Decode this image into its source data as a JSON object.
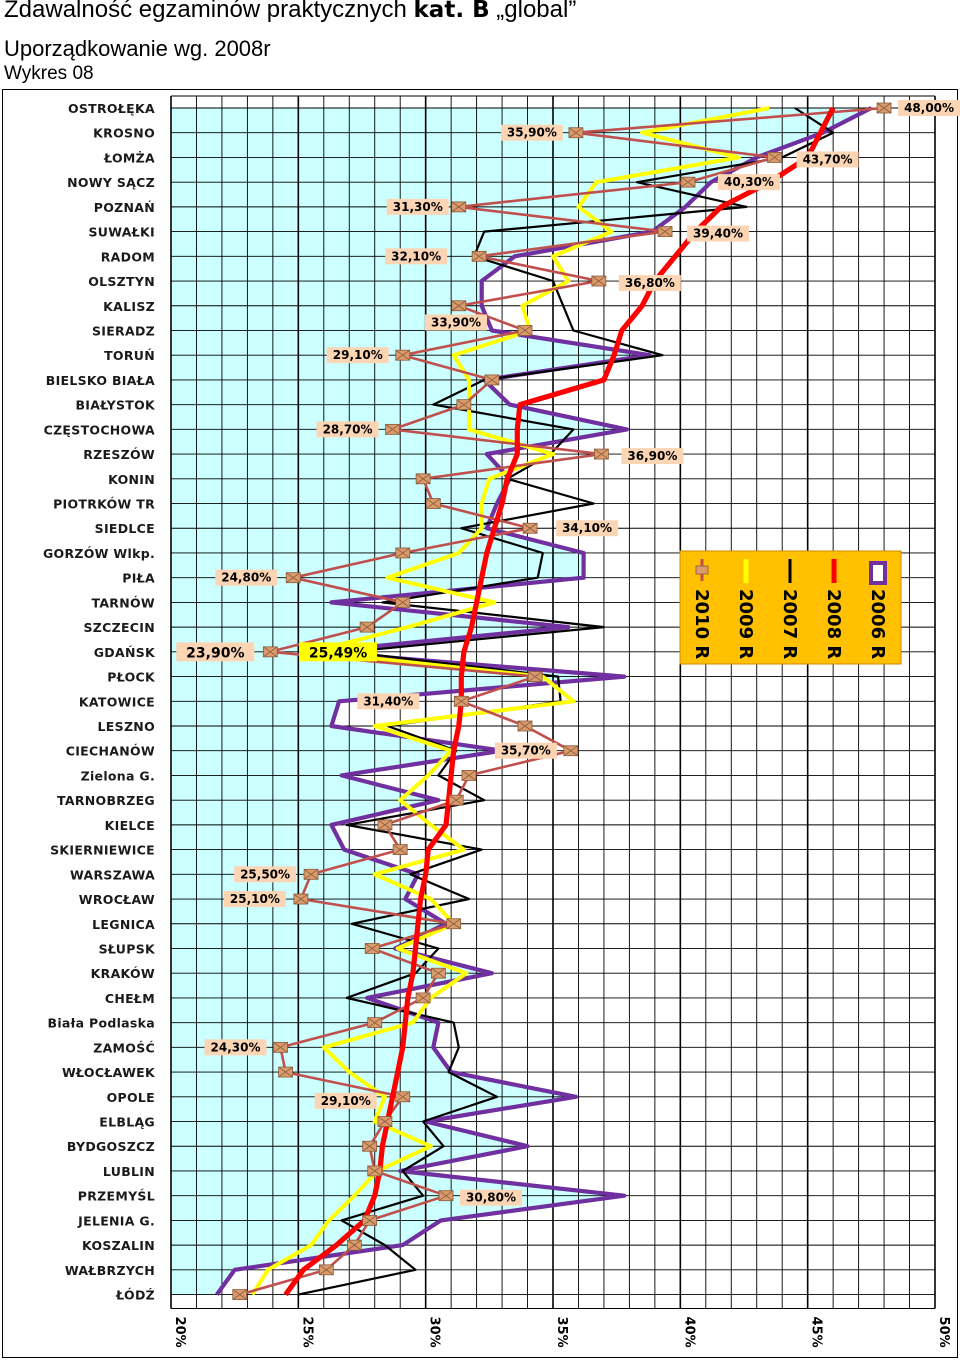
{
  "header": {
    "title_prefix": "Zdawalność egzaminów praktycznych ",
    "title_bold": "kat. B",
    "title_suffix": " „global”",
    "subtitle": "Uporządkowanie wg. 2008r",
    "figure_label": "Wykres 08"
  },
  "chart_data": {
    "type": "line",
    "orientation": "horizontal-categories",
    "xlim": [
      20,
      50
    ],
    "x_ticks": [
      "20%",
      "25%",
      "30%",
      "35%",
      "40%",
      "45%",
      "50%"
    ],
    "categories": [
      "OSTROŁĘKA",
      "KROSNO",
      "ŁOMŻA",
      "NOWY SĄCZ",
      "POZNAŃ",
      "SUWAŁKI",
      "RADOM",
      "OLSZTYN",
      "KALISZ",
      "SIERADZ",
      "TORUŃ",
      "BIELSKO BIAŁA",
      "BIAŁYSTOK",
      "CZĘSTOCHOWA",
      "RZESZÓW",
      "KONIN",
      "PIOTRKÓW TR",
      "SIEDLCE",
      "GORZÓW Wlkp.",
      "PIŁA",
      "TARNÓW",
      "SZCZECIN",
      "GDAŃSK",
      "PŁOCK",
      "KATOWICE",
      "LESZNO",
      "CIECHANÓW",
      "Zielona G.",
      "TARNOBRZEG",
      "KIELCE",
      "SKIERNIEWICE",
      "WARSZAWA",
      "WROCŁAW",
      "LEGNICA",
      "SŁUPSK",
      "KRAKÓW",
      "CHEŁM",
      "Biała Podlaska",
      "ZAMOŚĆ",
      "WŁOCŁAWEK",
      "OPOLE",
      "ELBLĄG",
      "BYDGOSZCZ",
      "LUBLIN",
      "PRZEMYŚL",
      "JELENIA G.",
      "KOSZALIN",
      "WAŁBRZYCH",
      "ŁÓDŹ"
    ],
    "series": [
      {
        "name": "2006 R",
        "color": "#7030a0",
        "values": [
          47.5,
          45.6,
          43.0,
          41.2,
          40.2,
          38.9,
          33.5,
          32.2,
          32.2,
          32.6,
          38.8,
          32.3,
          33.3,
          37.9,
          32.4,
          33.3,
          32.8,
          32.4,
          36.2,
          36.2,
          26.3,
          35.6,
          25.8,
          37.8,
          26.6,
          26.3,
          33.0,
          26.7,
          30.5,
          26.3,
          26.8,
          29.7,
          29.2,
          30.8,
          28.8,
          32.6,
          27.7,
          30.5,
          30.3,
          31.0,
          35.9,
          30.0,
          34.0,
          29.0,
          37.8,
          30.6,
          29.1,
          22.5,
          21.8
        ]
      },
      {
        "name": "2007 R",
        "color": "#000000",
        "values": [
          44.5,
          46.0,
          44.0,
          38.3,
          42.6,
          32.3,
          31.9,
          35.0,
          35.4,
          35.8,
          39.3,
          32.3,
          30.3,
          35.8,
          34.9,
          33.2,
          36.6,
          31.4,
          34.6,
          34.4,
          28.3,
          37.0,
          27.0,
          35.2,
          35.3,
          28.5,
          31.2,
          30.5,
          32.3,
          26.9,
          32.2,
          29.4,
          31.7,
          27.1,
          30.5,
          29.6,
          26.9,
          31.1,
          31.3,
          30.9,
          32.8,
          29.9,
          30.7,
          29.1,
          29.9,
          26.7,
          28.4,
          29.6,
          25.0
        ]
      },
      {
        "name": "2008 R",
        "color": "#ff0000",
        "values": [
          46.0,
          45.5,
          45.0,
          43.5,
          41.6,
          40.6,
          39.8,
          39.0,
          38.5,
          37.7,
          37.4,
          37.0,
          33.7,
          33.6,
          33.6,
          33.2,
          33.0,
          32.7,
          32.4,
          32.2,
          32.0,
          31.8,
          31.5,
          31.4,
          31.4,
          31.3,
          31.1,
          31.0,
          30.9,
          30.8,
          30.1,
          30.0,
          29.8,
          29.7,
          29.6,
          29.5,
          29.3,
          29.2,
          29.1,
          28.9,
          28.7,
          28.5,
          28.3,
          28.2,
          28.0,
          27.6,
          26.5,
          25.2,
          24.5
        ]
      },
      {
        "name": "2009 R",
        "color": "#ffff00",
        "values": [
          43.5,
          38.5,
          42.3,
          36.7,
          36.0,
          37.3,
          35.0,
          35.6,
          33.8,
          34.1,
          31.1,
          31.7,
          31.7,
          31.7,
          35.0,
          32.5,
          32.2,
          32.2,
          31.3,
          28.5,
          32.7,
          29.3,
          25.5,
          34.6,
          35.8,
          28.0,
          31.0,
          30.1,
          29.0,
          30.2,
          31.5,
          28.0,
          30.2,
          31.1,
          28.9,
          31.6,
          30.2,
          29.5,
          26.0,
          27.0,
          28.4,
          28.0,
          30.2,
          28.1,
          27.2,
          26.2,
          25.5,
          23.8,
          23.2
        ]
      },
      {
        "name": "2010 R",
        "color": "#c0504d",
        "values": [
          48.0,
          35.9,
          43.7,
          40.3,
          31.3,
          39.4,
          32.1,
          36.8,
          31.3,
          33.9,
          29.1,
          32.6,
          31.5,
          28.7,
          36.9,
          29.9,
          30.3,
          34.1,
          29.1,
          24.8,
          29.1,
          27.7,
          23.9,
          34.3,
          31.4,
          33.9,
          35.7,
          31.7,
          31.2,
          28.4,
          29.0,
          25.5,
          25.1,
          31.1,
          27.9,
          30.5,
          29.9,
          28.0,
          24.3,
          24.5,
          29.1,
          28.4,
          27.8,
          28.0,
          30.8,
          27.8,
          27.2,
          26.1,
          22.7
        ]
      }
    ],
    "data_labels": [
      {
        "series": "2010 R",
        "category": "OSTROŁĘKA",
        "text": "48,00%"
      },
      {
        "series": "2010 R",
        "category": "KROSNO",
        "text": "35,90%"
      },
      {
        "series": "2010 R",
        "category": "ŁOMŻA",
        "text": "43,70%"
      },
      {
        "series": "2010 R",
        "category": "NOWY SĄCZ",
        "text": "40,30%"
      },
      {
        "series": "2010 R",
        "category": "POZNAŃ",
        "text": "31,30%"
      },
      {
        "series": "2010 R",
        "category": "SUWAŁKI",
        "text": "39,40%"
      },
      {
        "series": "2010 R",
        "category": "RADOM",
        "text": "32,10%"
      },
      {
        "series": "2010 R",
        "category": "OLSZTYN",
        "text": "36,80%"
      },
      {
        "series": "2010 R",
        "category": "SIERADZ",
        "text": "33,90%"
      },
      {
        "series": "2010 R",
        "category": "TORUŃ",
        "text": "29,10%"
      },
      {
        "series": "2010 R",
        "category": "CZĘSTOCHOWA",
        "text": "28,70%"
      },
      {
        "series": "2010 R",
        "category": "RZESZÓW",
        "text": "36,90%"
      },
      {
        "series": "2010 R",
        "category": "SIEDLCE",
        "text": "34,10%"
      },
      {
        "series": "2010 R",
        "category": "PIŁA",
        "text": "24,80%"
      },
      {
        "series": "2010 R",
        "category": "GDAŃSK",
        "text": "23,90%"
      },
      {
        "series": "2009 R",
        "category": "GDAŃSK",
        "text": "25,49%"
      },
      {
        "series": "2010 R",
        "category": "KATOWICE",
        "text": "31,40%"
      },
      {
        "series": "2010 R",
        "category": "CIECHANÓW",
        "text": "35,70%"
      },
      {
        "series": "2010 R",
        "category": "WARSZAWA",
        "text": "25,50%"
      },
      {
        "series": "2010 R",
        "category": "WROCŁAW",
        "text": "25,10%"
      },
      {
        "series": "2010 R",
        "category": "ZAMOŚĆ",
        "text": "24,30%"
      },
      {
        "series": "2010 R",
        "category": "OPOLE",
        "text": "29,10%"
      },
      {
        "series": "2010 R",
        "category": "PRZEMYŚL",
        "text": "30,80%"
      }
    ],
    "legend": {
      "placement": "right-middle",
      "background": "#ffc000",
      "items": [
        "2010 R",
        "2009 R",
        "2007 R",
        "2008 R",
        "2006 R"
      ]
    },
    "colors": {
      "area_fill": "#ccffff",
      "label_fill": "#fcd5b4",
      "grid": "#000000"
    },
    "grid": true
  }
}
